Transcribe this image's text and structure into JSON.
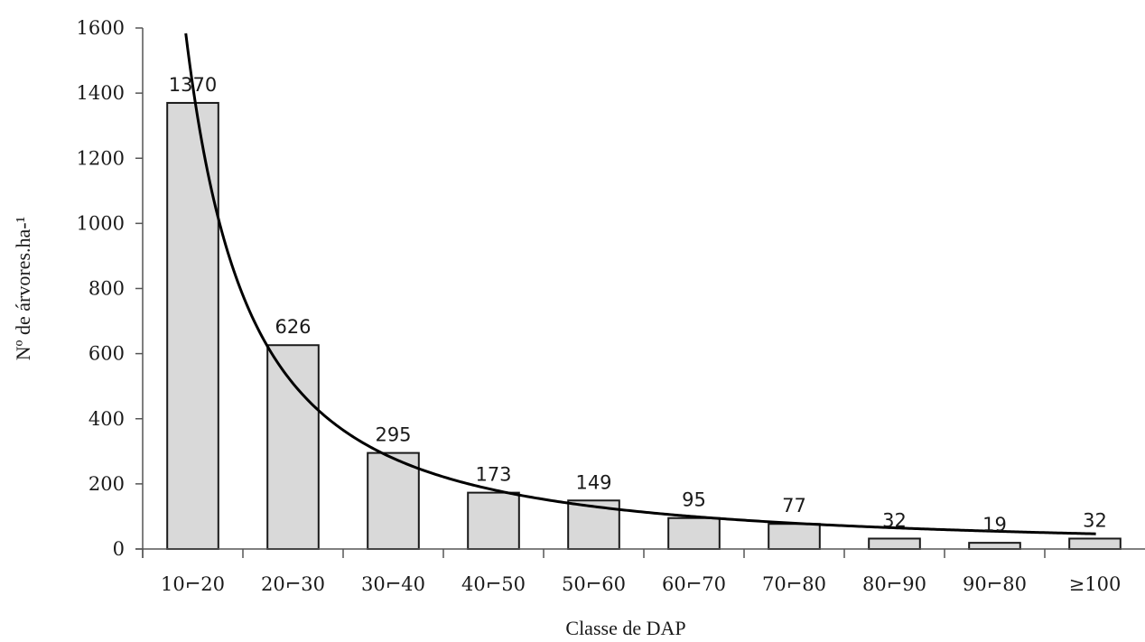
{
  "chart_data": {
    "type": "bar",
    "title": "",
    "xlabel": "Classe de DAP",
    "ylabel": "Nº de árvores.ha-¹",
    "categories": [
      "10⌐20",
      "20⌐30",
      "30⌐40",
      "40⌐50",
      "50⌐60",
      "60⌐70",
      "70⌐80",
      "80⌐90",
      "90⌐80",
      "≥100"
    ],
    "values": [
      1370,
      626,
      295,
      173,
      149,
      95,
      77,
      32,
      19,
      32
    ],
    "data_labels": [
      "1370",
      "626",
      "295",
      "173",
      "149",
      "95",
      "77",
      "32",
      "19",
      "32"
    ],
    "ylim": [
      0,
      1600
    ],
    "yticks": [
      0,
      200,
      400,
      600,
      800,
      1000,
      1200,
      1400,
      1600
    ],
    "grid": false,
    "legend": "none",
    "trendline": {
      "type": "power",
      "x": [
        1,
        2,
        3,
        4,
        5,
        6,
        7,
        8,
        9,
        10
      ],
      "y": [
        1260,
        520,
        300,
        200,
        140,
        105,
        80,
        63,
        51,
        42
      ]
    },
    "colors": {
      "bar_fill": "#d9d9d9",
      "bar_stroke": "#1a1a1a",
      "curve": "#000000",
      "axis": "#555555"
    }
  }
}
